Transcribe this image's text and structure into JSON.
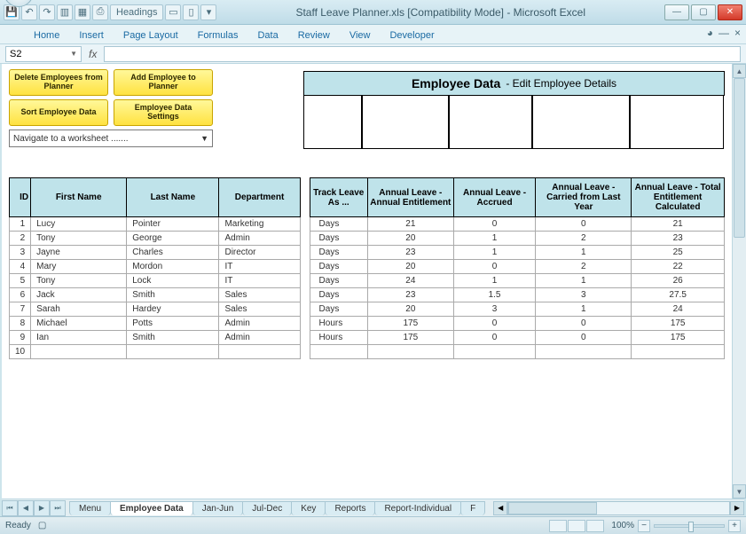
{
  "window": {
    "title": "Staff Leave Planner.xls [Compatibility Mode] - Microsoft Excel",
    "qat_headings": "Headings"
  },
  "ribbon": {
    "tabs": [
      "Home",
      "Insert",
      "Page Layout",
      "Formulas",
      "Data",
      "Review",
      "View",
      "Developer"
    ]
  },
  "namebox": "S2",
  "macro": {
    "delete": "Delete Employees from Planner",
    "add": "Add Employee to Planner",
    "sort": "Sort Employee Data",
    "settings": "Employee Data Settings",
    "nav": "Navigate to a worksheet ......."
  },
  "header": {
    "title": "Employee Data",
    "subtitle": "- Edit Employee Details"
  },
  "table1": {
    "cols": [
      "ID",
      "First Name",
      "Last Name",
      "Department"
    ],
    "rows": [
      [
        "1",
        "Lucy",
        "Pointer",
        "Marketing"
      ],
      [
        "2",
        "Tony",
        "George",
        "Admin"
      ],
      [
        "3",
        "Jayne",
        "Charles",
        "Director"
      ],
      [
        "4",
        "Mary",
        "Mordon",
        "IT"
      ],
      [
        "5",
        "Tony",
        "Lock",
        "IT"
      ],
      [
        "6",
        "Jack",
        "Smith",
        "Sales"
      ],
      [
        "7",
        "Sarah",
        "Hardey",
        "Sales"
      ],
      [
        "8",
        "Michael",
        "Potts",
        "Admin"
      ],
      [
        "9",
        "Ian",
        "Smith",
        "Admin"
      ],
      [
        "10",
        "",
        "",
        ""
      ]
    ]
  },
  "table2": {
    "cols": [
      "Track Leave As ...",
      "Annual Leave - Annual Entitlement",
      "Annual Leave - Accrued",
      "Annual Leave - Carried from Last Year",
      "Annual Leave - Total Entitlement Calculated"
    ],
    "rows": [
      [
        "Days",
        "21",
        "0",
        "0",
        "21"
      ],
      [
        "Days",
        "20",
        "1",
        "2",
        "23"
      ],
      [
        "Days",
        "23",
        "1",
        "1",
        "25"
      ],
      [
        "Days",
        "20",
        "0",
        "2",
        "22"
      ],
      [
        "Days",
        "24",
        "1",
        "1",
        "26"
      ],
      [
        "Days",
        "23",
        "1.5",
        "3",
        "27.5"
      ],
      [
        "Days",
        "20",
        "3",
        "1",
        "24"
      ],
      [
        "Hours",
        "175",
        "0",
        "0",
        "175"
      ],
      [
        "Hours",
        "175",
        "0",
        "0",
        "175"
      ],
      [
        "",
        "",
        "",
        "",
        ""
      ]
    ]
  },
  "sheets": {
    "tabs": [
      "Menu",
      "Employee Data",
      "Jan-Jun",
      "Jul-Dec",
      "Key",
      "Reports",
      "Report-Individual",
      "F"
    ],
    "active": 1
  },
  "status": {
    "ready": "Ready",
    "zoom": "100%"
  }
}
